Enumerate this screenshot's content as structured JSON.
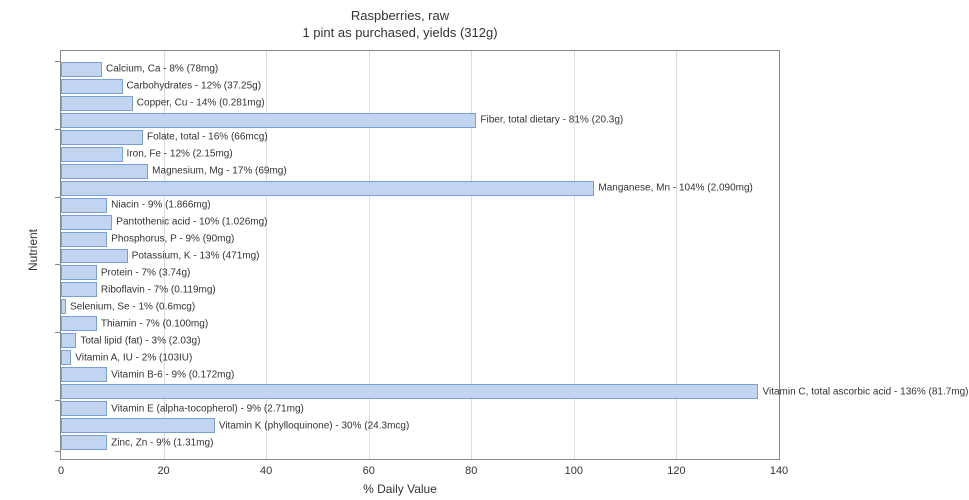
{
  "title_line1": "Raspberries, raw",
  "title_line2": "1 pint as purchased, yields (312g)",
  "y_axis_label": "Nutrient",
  "x_axis_label": "% Daily Value",
  "chart": {
    "type": "bar",
    "orientation": "horizontal",
    "xlim": [
      0,
      140
    ],
    "xtick_step": 20,
    "bar_fill_color": "#c1d4f0",
    "bar_border_color": "#7a9fd4",
    "grid_color": "#dcdcdc",
    "border_color": "#888888",
    "background_color": "#ffffff",
    "label_fontsize": 10,
    "axis_fontsize": 12,
    "title_fontsize": 13,
    "text_color": "#333333"
  },
  "nutrients": [
    {
      "label": "Calcium, Ca - 8% (78mg)",
      "value": 8
    },
    {
      "label": "Carbohydrates - 12% (37.25g)",
      "value": 12
    },
    {
      "label": "Copper, Cu - 14% (0.281mg)",
      "value": 14
    },
    {
      "label": "Fiber, total dietary - 81% (20.3g)",
      "value": 81
    },
    {
      "label": "Folate, total - 16% (66mcg)",
      "value": 16
    },
    {
      "label": "Iron, Fe - 12% (2.15mg)",
      "value": 12
    },
    {
      "label": "Magnesium, Mg - 17% (69mg)",
      "value": 17
    },
    {
      "label": "Manganese, Mn - 104% (2.090mg)",
      "value": 104
    },
    {
      "label": "Niacin - 9% (1.866mg)",
      "value": 9
    },
    {
      "label": "Pantothenic acid - 10% (1.026mg)",
      "value": 10
    },
    {
      "label": "Phosphorus, P - 9% (90mg)",
      "value": 9
    },
    {
      "label": "Potassium, K - 13% (471mg)",
      "value": 13
    },
    {
      "label": "Protein - 7% (3.74g)",
      "value": 7
    },
    {
      "label": "Riboflavin - 7% (0.119mg)",
      "value": 7
    },
    {
      "label": "Selenium, Se - 1% (0.6mcg)",
      "value": 1
    },
    {
      "label": "Thiamin - 7% (0.100mg)",
      "value": 7
    },
    {
      "label": "Total lipid (fat) - 3% (2.03g)",
      "value": 3
    },
    {
      "label": "Vitamin A, IU - 2% (103IU)",
      "value": 2
    },
    {
      "label": "Vitamin B-6 - 9% (0.172mg)",
      "value": 9
    },
    {
      "label": "Vitamin C, total ascorbic acid - 136% (81.7mg)",
      "value": 136
    },
    {
      "label": "Vitamin E (alpha-tocopherol) - 9% (2.71mg)",
      "value": 9
    },
    {
      "label": "Vitamin K (phylloquinone) - 30% (24.3mcg)",
      "value": 30
    },
    {
      "label": "Zinc, Zn - 9% (1.31mg)",
      "value": 9
    }
  ],
  "xticks": [
    {
      "v": 0,
      "label": "0"
    },
    {
      "v": 20,
      "label": "20"
    },
    {
      "v": 40,
      "label": "40"
    },
    {
      "v": 60,
      "label": "60"
    },
    {
      "v": 80,
      "label": "80"
    },
    {
      "v": 100,
      "label": "100"
    },
    {
      "v": 120,
      "label": "120"
    },
    {
      "v": 140,
      "label": "140"
    }
  ]
}
